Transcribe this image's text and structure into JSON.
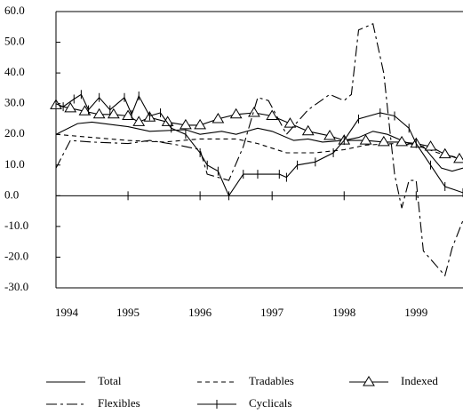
{
  "chart_data": {
    "type": "line",
    "xlim": [
      1994,
      1999.65
    ],
    "xticks": [
      1994,
      1995,
      1996,
      1997,
      1998,
      1999
    ],
    "ylim": [
      -30,
      60
    ],
    "yticks": [
      {
        "value": 60,
        "label": "60.0"
      },
      {
        "value": 50,
        "label": "50.0"
      },
      {
        "value": 40,
        "label": "40.0"
      },
      {
        "value": 30,
        "label": "30.0"
      },
      {
        "value": 20,
        "label": "20.0"
      },
      {
        "value": 10,
        "label": "10.0"
      },
      {
        "value": 0,
        "label": "0.0"
      },
      {
        "value": -10,
        "label": "-10.0"
      },
      {
        "value": -20,
        "label": "-20.0"
      },
      {
        "value": -30,
        "label": "-30.0"
      }
    ],
    "grid": false,
    "series": [
      {
        "name": "Total",
        "color": "#000000",
        "dash": "none",
        "marker": "none",
        "x": [
          1994,
          1994.3,
          1994.5,
          1995,
          1995.3,
          1995.8,
          1996,
          1996.3,
          1996.5,
          1996.8,
          1997,
          1997.3,
          1997.5,
          1997.7,
          1998,
          1998.2,
          1998.4,
          1998.6,
          1998.9,
          1999.1,
          1999.35,
          1999.5,
          1999.65
        ],
        "values": [
          20,
          23.5,
          24,
          22.5,
          21,
          21.5,
          20,
          21,
          20,
          22,
          21,
          18,
          18.5,
          17.5,
          18,
          19,
          21,
          20,
          17,
          16,
          9,
          8,
          9
        ]
      },
      {
        "name": "Tradables",
        "color": "#000000",
        "dash": "5,4",
        "marker": "none",
        "x": [
          1994,
          1994.5,
          1995,
          1995.5,
          1996,
          1996.5,
          1996.8,
          1997.2,
          1997.6,
          1998,
          1998.3,
          1998.7,
          1999,
          1999.3,
          1999.65
        ],
        "values": [
          20,
          19,
          18,
          17.5,
          18.5,
          18.5,
          17,
          14,
          14,
          15,
          16.5,
          17,
          16.5,
          14,
          12
        ]
      },
      {
        "name": "Indexed",
        "color": "#000000",
        "dash": "none",
        "marker": "triangle",
        "x": [
          1994,
          1994.2,
          1994.4,
          1994.6,
          1994.8,
          1995,
          1995.15,
          1995.3,
          1995.55,
          1995.8,
          1996,
          1996.25,
          1996.5,
          1996.75,
          1997,
          1997.25,
          1997.5,
          1997.8,
          1998,
          1998.3,
          1998.55,
          1998.8,
          1999,
          1999.2,
          1999.4,
          1999.6
        ],
        "values": [
          29.5,
          28.5,
          27.5,
          26.5,
          26.5,
          26,
          24,
          25.5,
          24,
          23,
          23,
          25,
          26.5,
          27,
          26,
          23.5,
          21,
          19.5,
          18,
          18,
          17.5,
          17.5,
          17,
          16,
          13.5,
          12
        ]
      },
      {
        "name": "Flexibles",
        "color": "#000000",
        "dash": "12,4,3,4",
        "marker": "none",
        "x": [
          1994,
          1994.2,
          1994.5,
          1995,
          1995.3,
          1995.7,
          1996,
          1996.1,
          1996.25,
          1996.4,
          1996.6,
          1996.8,
          1996.95,
          1997.2,
          1997.5,
          1997.8,
          1998,
          1998.1,
          1998.2,
          1998.4,
          1998.55,
          1998.7,
          1998.8,
          1998.9,
          1999,
          1999.1,
          1999.4,
          1999.5,
          1999.65
        ],
        "values": [
          9,
          18,
          17.5,
          17,
          18,
          16.5,
          15,
          7,
          6,
          5,
          16,
          32,
          31,
          20,
          28,
          33,
          31,
          33,
          54,
          56,
          40,
          7,
          -4,
          5,
          5,
          -18,
          -26,
          -17,
          -8
        ]
      },
      {
        "name": "Cyclicals",
        "color": "#000000",
        "dash": "none",
        "marker": "tick",
        "x": [
          1994,
          1994.1,
          1994.25,
          1994.35,
          1994.45,
          1994.6,
          1994.75,
          1994.95,
          1995.05,
          1995.15,
          1995.3,
          1995.45,
          1995.6,
          1995.8,
          1996,
          1996.1,
          1996.25,
          1996.4,
          1996.6,
          1996.8,
          1997.1,
          1997.2,
          1997.35,
          1997.6,
          1997.85,
          1998,
          1998.2,
          1998.5,
          1998.7,
          1998.9,
          1999,
          1999.2,
          1999.4,
          1999.65
        ],
        "values": [
          30,
          29,
          31.5,
          33,
          28,
          32,
          28,
          32,
          26.5,
          32.5,
          26,
          27,
          22,
          20,
          14,
          10,
          8,
          0,
          7,
          7,
          7,
          6,
          10,
          11,
          14,
          18,
          25,
          27,
          26,
          22,
          17,
          10,
          3,
          1
        ]
      }
    ],
    "legend": "bottom"
  }
}
